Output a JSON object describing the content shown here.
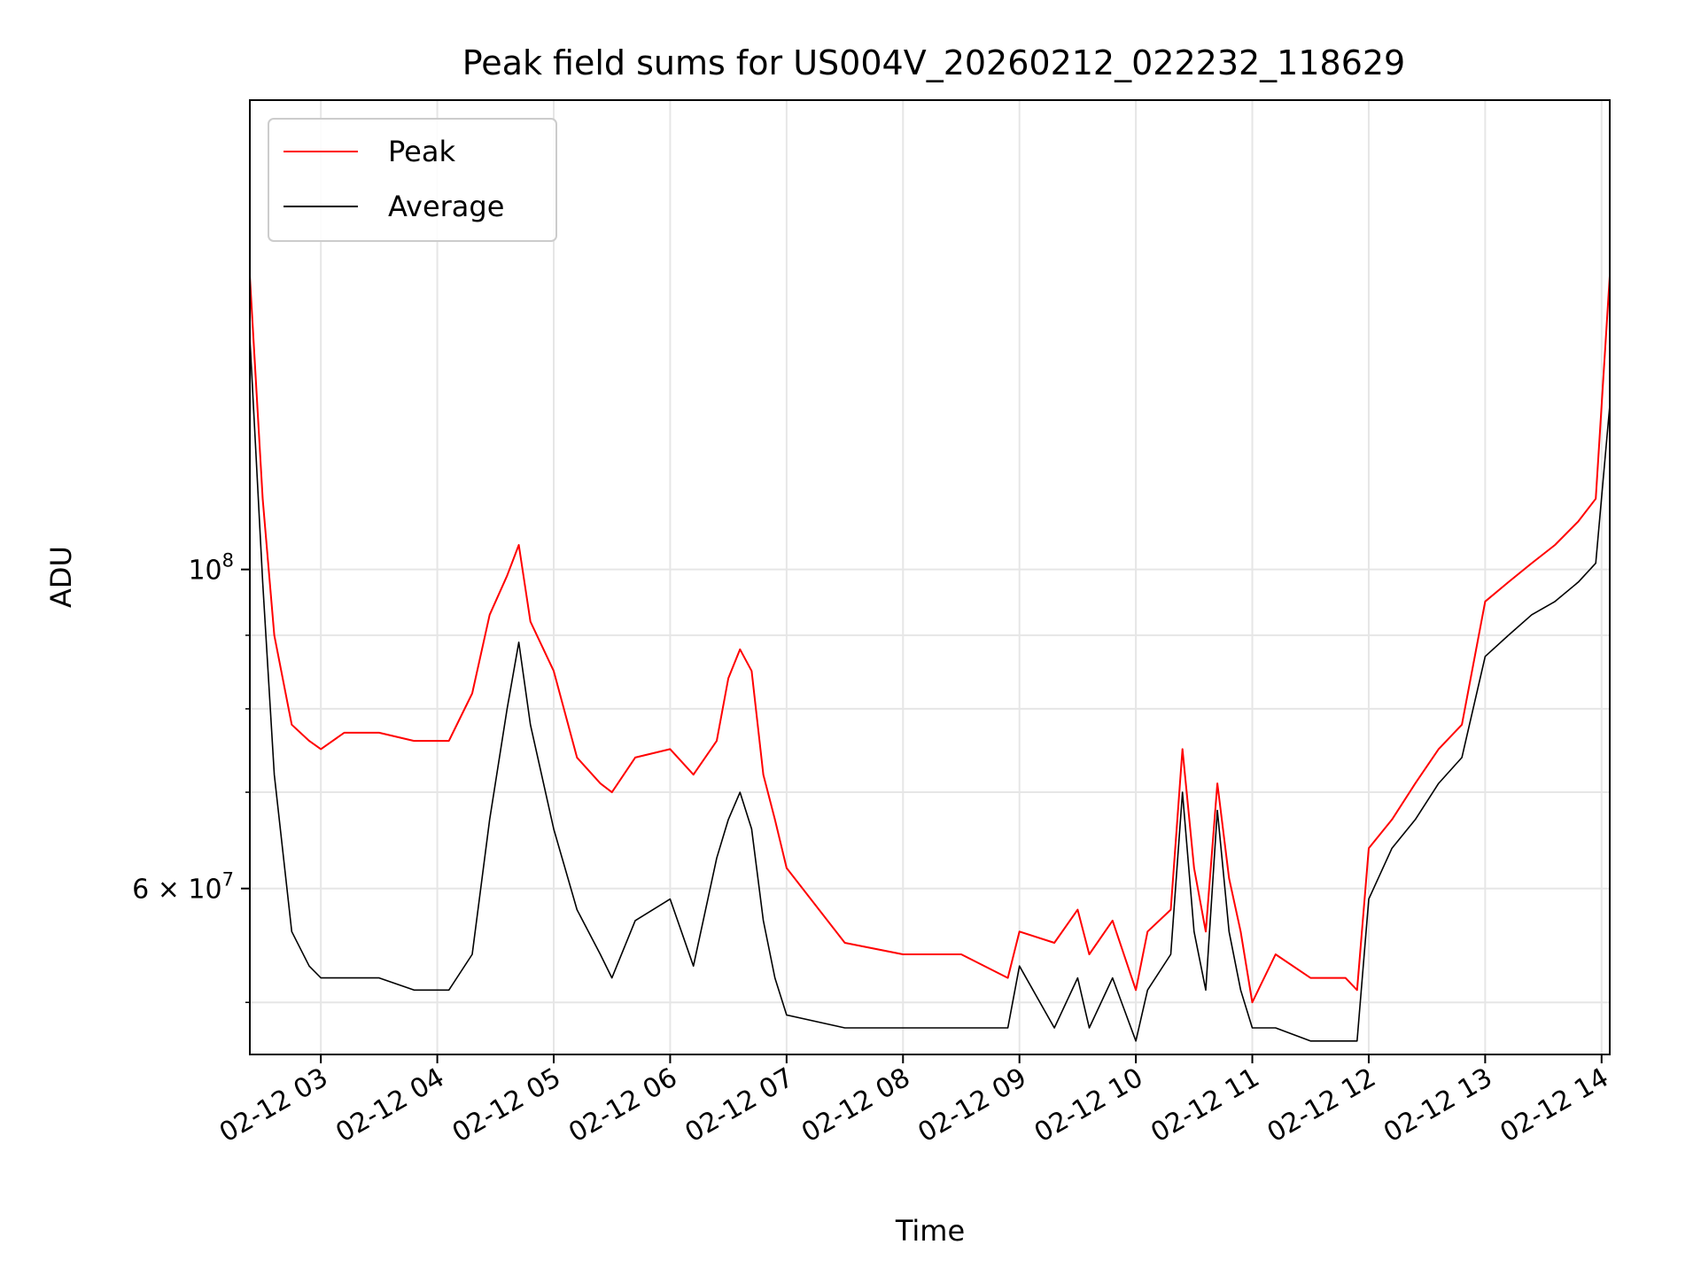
{
  "chart_data": {
    "type": "line",
    "title": "Peak field sums for US004V_20260212_022232_118629",
    "xlabel": "Time",
    "ylabel": "ADU",
    "yscale": "log",
    "xlim": [
      2.39,
      14.07
    ],
    "ylim": [
      46000000,
      212000000
    ],
    "grid": true,
    "legend_position": "top-left",
    "x_ticks": [
      {
        "value": 3,
        "label": "02-12 03"
      },
      {
        "value": 4,
        "label": "02-12 04"
      },
      {
        "value": 5,
        "label": "02-12 05"
      },
      {
        "value": 6,
        "label": "02-12 06"
      },
      {
        "value": 7,
        "label": "02-12 07"
      },
      {
        "value": 8,
        "label": "02-12 08"
      },
      {
        "value": 9,
        "label": "02-12 09"
      },
      {
        "value": 10,
        "label": "02-12 10"
      },
      {
        "value": 11,
        "label": "02-12 11"
      },
      {
        "value": 12,
        "label": "02-12 12"
      },
      {
        "value": 13,
        "label": "02-12 13"
      },
      {
        "value": 14,
        "label": "02-12 14"
      }
    ],
    "y_major_ticks": [
      {
        "value": 60000000,
        "base": "6 × 10",
        "exp": "7"
      },
      {
        "value": 100000000,
        "base": "10",
        "exp": "8"
      }
    ],
    "y_minor_ticks": [
      50000000,
      70000000,
      80000000,
      90000000
    ],
    "series": [
      {
        "name": "Peak",
        "color": "#ff0000",
        "x": [
          2.39,
          2.5,
          2.6,
          2.75,
          2.9,
          3.0,
          3.2,
          3.5,
          3.8,
          4.1,
          4.3,
          4.45,
          4.6,
          4.7,
          4.8,
          5.0,
          5.2,
          5.4,
          5.5,
          5.7,
          6.0,
          6.2,
          6.4,
          6.5,
          6.6,
          6.7,
          6.8,
          6.9,
          7.0,
          7.5,
          8.0,
          8.5,
          8.9,
          9.0,
          9.3,
          9.5,
          9.6,
          9.8,
          10.0,
          10.1,
          10.3,
          10.4,
          10.5,
          10.6,
          10.7,
          10.8,
          10.9,
          11.0,
          11.2,
          11.5,
          11.8,
          11.9,
          12.0,
          12.2,
          12.4,
          12.6,
          12.8,
          13.0,
          13.2,
          13.4,
          13.6,
          13.8,
          13.95,
          14.07
        ],
        "values": [
          160000000,
          112000000,
          90000000,
          78000000,
          76000000,
          75000000,
          77000000,
          77000000,
          76000000,
          76000000,
          82000000,
          93000000,
          99000000,
          104000000,
          92000000,
          85000000,
          74000000,
          71000000,
          70000000,
          74000000,
          75000000,
          72000000,
          76000000,
          84000000,
          88000000,
          85000000,
          72000000,
          67000000,
          62000000,
          55000000,
          54000000,
          54000000,
          52000000,
          56000000,
          55000000,
          58000000,
          54000000,
          57000000,
          51000000,
          56000000,
          58000000,
          75000000,
          62000000,
          56000000,
          71000000,
          61000000,
          56000000,
          50000000,
          54000000,
          52000000,
          52000000,
          51000000,
          64000000,
          67000000,
          71000000,
          75000000,
          78000000,
          95000000,
          98000000,
          101000000,
          104000000,
          108000000,
          112000000,
          160000000
        ]
      },
      {
        "name": "Average",
        "color": "#000000",
        "x": [
          2.39,
          2.5,
          2.6,
          2.75,
          2.9,
          3.0,
          3.2,
          3.5,
          3.8,
          4.1,
          4.3,
          4.45,
          4.6,
          4.7,
          4.8,
          5.0,
          5.2,
          5.4,
          5.5,
          5.7,
          6.0,
          6.2,
          6.4,
          6.5,
          6.6,
          6.7,
          6.8,
          6.9,
          7.0,
          7.5,
          8.0,
          8.5,
          8.9,
          9.0,
          9.3,
          9.5,
          9.6,
          9.8,
          10.0,
          10.1,
          10.3,
          10.4,
          10.5,
          10.6,
          10.7,
          10.8,
          10.9,
          11.0,
          11.2,
          11.5,
          11.8,
          11.9,
          12.0,
          12.2,
          12.4,
          12.6,
          12.8,
          13.0,
          13.2,
          13.4,
          13.6,
          13.8,
          13.95,
          14.07
        ],
        "values": [
          145000000,
          98000000,
          72000000,
          56000000,
          53000000,
          52000000,
          52000000,
          52000000,
          51000000,
          51000000,
          54000000,
          67000000,
          80000000,
          89000000,
          78000000,
          66000000,
          58000000,
          54000000,
          52000000,
          57000000,
          59000000,
          53000000,
          63000000,
          67000000,
          70000000,
          66000000,
          57000000,
          52000000,
          49000000,
          48000000,
          48000000,
          48000000,
          48000000,
          53000000,
          48000000,
          52000000,
          48000000,
          52000000,
          47000000,
          51000000,
          54000000,
          70000000,
          56000000,
          51000000,
          68000000,
          56000000,
          51000000,
          48000000,
          48000000,
          47000000,
          47000000,
          47000000,
          59000000,
          64000000,
          67000000,
          71000000,
          74000000,
          87000000,
          90000000,
          93000000,
          95000000,
          98000000,
          101000000,
          130000000
        ]
      }
    ]
  }
}
